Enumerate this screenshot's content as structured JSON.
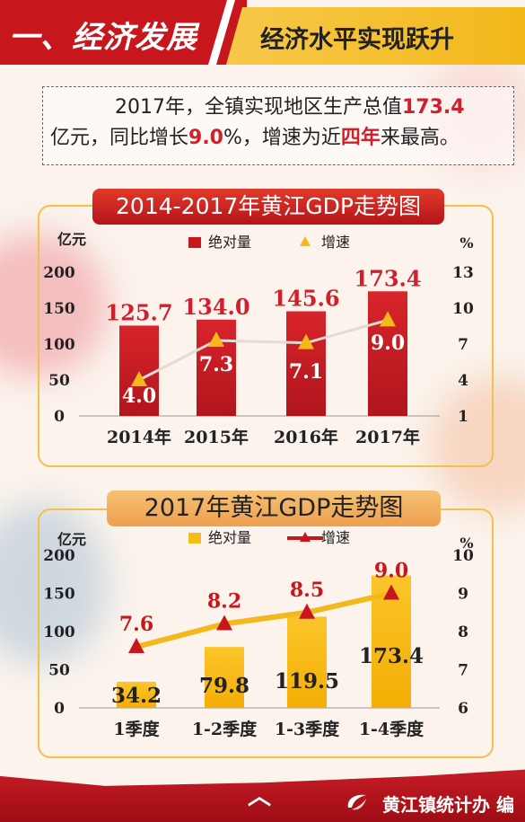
{
  "header": {
    "title": "一、经济发展",
    "subtitle": "经济水平实现跃升"
  },
  "summary": {
    "p1": "2017年，全镇实现地区生产总值",
    "v1": "173.4",
    "p2": "亿元，同比增长",
    "v2": "9.0",
    "p3": "%，增速为近",
    "v3": "四年",
    "p4": "来最高。"
  },
  "colors": {
    "red": "#c8161d",
    "gold": "#f3b81a",
    "label_red": "#d11f2b"
  },
  "chart_data": [
    {
      "type": "bar",
      "title": "2014-2017年黄江GDP走势图",
      "categories": [
        "2014年",
        "2015年",
        "2016年",
        "2017年"
      ],
      "series": [
        {
          "name": "绝对量",
          "values": [
            125.7,
            134.0,
            145.6,
            173.4
          ],
          "value_labels": [
            "125.7",
            "134.0",
            "145.6",
            "173.4"
          ],
          "color": "#c8161d"
        },
        {
          "name": "增速",
          "type": "line",
          "axis": "right",
          "values": [
            4.0,
            7.3,
            7.1,
            9.0
          ],
          "value_labels": [
            "4.0",
            "7.3",
            "7.1",
            "9.0"
          ],
          "color": "#f3b81a"
        }
      ],
      "ylabel": "亿元",
      "y2label": "%",
      "ylim": [
        0,
        200
      ],
      "yticks": [
        "200",
        "150",
        "100",
        "50",
        "0"
      ],
      "y2lim": [
        1,
        13
      ],
      "y2ticks": [
        "13",
        "10",
        "7",
        "4",
        "1"
      ],
      "legend": "top"
    },
    {
      "type": "bar",
      "title": "2017年黄江GDP走势图",
      "categories": [
        "1季度",
        "1-2季度",
        "1-3季度",
        "1-4季度"
      ],
      "series": [
        {
          "name": "绝对量",
          "values": [
            34.2,
            79.8,
            119.5,
            173.4
          ],
          "value_labels": [
            "34.2",
            "79.8",
            "119.5",
            "173.4"
          ],
          "color": "#f6bd16"
        },
        {
          "name": "增速",
          "type": "line",
          "axis": "right",
          "values": [
            7.6,
            8.2,
            8.5,
            9.0
          ],
          "value_labels": [
            "7.6",
            "8.2",
            "8.5",
            "9.0"
          ],
          "color": "#c8161d"
        }
      ],
      "ylabel": "亿元",
      "y2label": "%",
      "ylim": [
        0,
        200
      ],
      "yticks": [
        "200",
        "150",
        "100",
        "50",
        "0"
      ],
      "y2lim": [
        6,
        10
      ],
      "y2ticks": [
        "10",
        "9",
        "8",
        "7",
        "6"
      ],
      "legend": "top"
    }
  ],
  "footer": {
    "credit": "黄江镇统计办 编"
  }
}
